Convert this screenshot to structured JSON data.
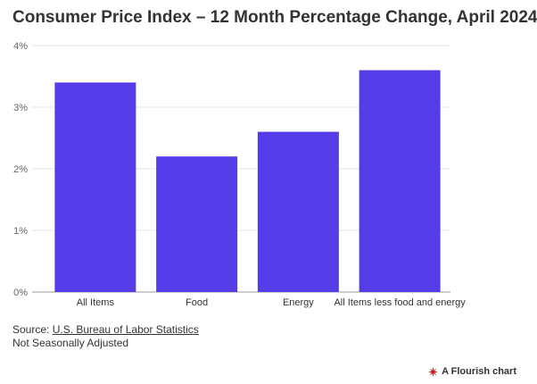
{
  "title": "Consumer Price Index – 12 Month Percentage Change, April 2024",
  "colors": {
    "bar": "#553ce9",
    "grid": "#e6e6e6",
    "axis": "#999999",
    "text": "#333333",
    "brand": "#cc1d1d"
  },
  "chart_data": {
    "type": "bar",
    "categories": [
      "All Items",
      "Food",
      "Energy",
      "All Items less food and energy"
    ],
    "values": [
      3.4,
      2.2,
      2.6,
      3.6
    ],
    "yticks": [
      "0%",
      "1%",
      "2%",
      "3%",
      "4%"
    ],
    "ylim": [
      0,
      4
    ],
    "grid": true,
    "xlabel": "",
    "ylabel": ""
  },
  "footer": {
    "source_prefix": "Source: ",
    "source_link": "U.S. Bureau of Labor Statistics",
    "note": "Not Seasonally Adjusted"
  },
  "brand": {
    "label": "A Flourish chart",
    "icon": "flourish-logo-icon"
  }
}
